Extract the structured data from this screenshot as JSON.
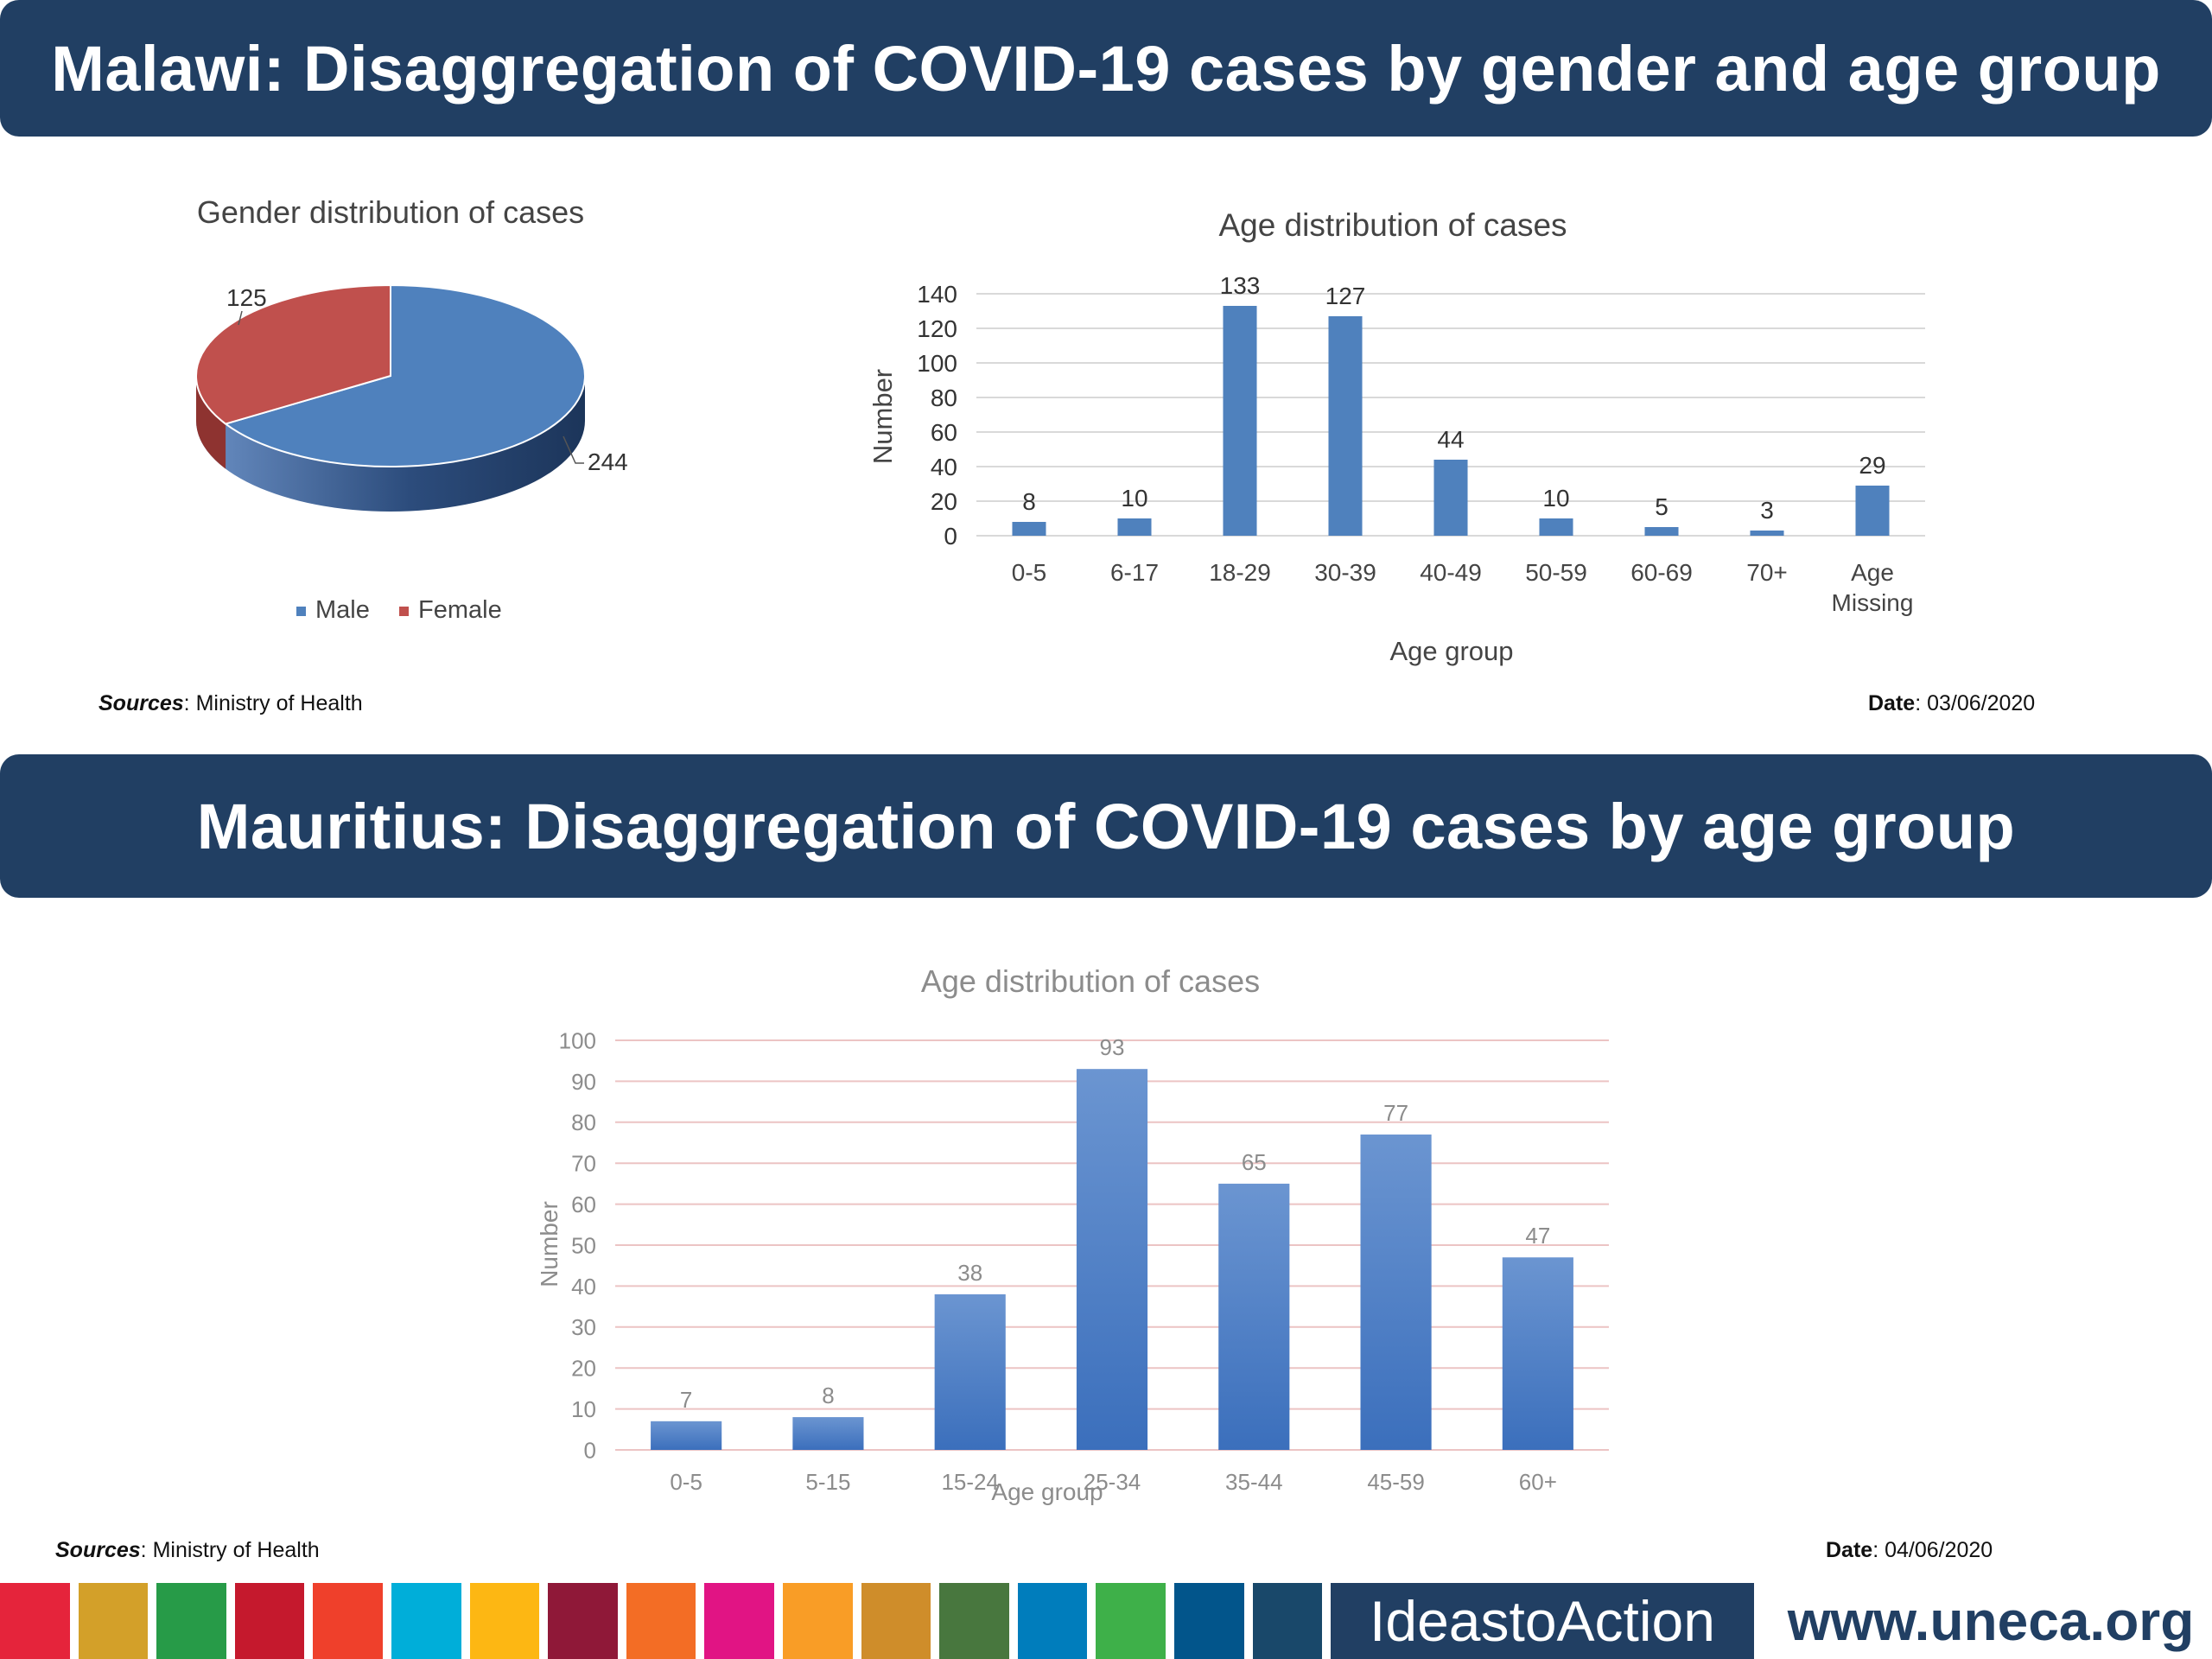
{
  "malawi": {
    "title": "Malawi: Disaggregation of COVID-19 cases by gender and age group",
    "sources_label": "Sources",
    "sources_value": ": Ministry of Health",
    "date_label": "Date",
    "date_value": ": 03/06/2020"
  },
  "mauritius": {
    "title": "Mauritius: Disaggregation of COVID-19 cases by  age group",
    "sources_label": "Sources",
    "sources_value": ": Ministry of Health",
    "date_label": "Date",
    "date_value": ": 04/06/2020"
  },
  "footer": {
    "ideas_label": "IdeastoAction",
    "website": "www.uneca.org",
    "sdg_colors": [
      "#e5243b",
      "#d3a029",
      "#279b48",
      "#c5192d",
      "#ef402b",
      "#00aed9",
      "#fdb713",
      "#8f1838",
      "#f36d25",
      "#e11484",
      "#f99d26",
      "#cf8d2a",
      "#48773e",
      "#007dbc",
      "#3eb049",
      "#02558b",
      "#19486a"
    ]
  },
  "chart_data": [
    {
      "type": "pie",
      "title": "Gender distribution of cases",
      "categories": [
        "Male",
        "Female"
      ],
      "values": [
        244,
        125
      ],
      "colors": [
        "#4f81bd",
        "#c0504d"
      ],
      "legend": "bottom"
    },
    {
      "type": "bar",
      "title": "Age distribution of cases",
      "xlabel": "Age group",
      "ylabel": "Number",
      "categories": [
        "0-5",
        "6-17",
        "18-29",
        "30-39",
        "40-49",
        "50-59",
        "60-69",
        "70+",
        "Age Missing"
      ],
      "values": [
        8,
        10,
        133,
        127,
        44,
        10,
        5,
        3,
        29
      ],
      "ylim": [
        0,
        140
      ],
      "yticks": [
        0,
        20,
        40,
        60,
        80,
        100,
        120,
        140
      ],
      "color": "#4f81bd",
      "grid": true
    },
    {
      "type": "bar",
      "title": "Age distribution of cases",
      "xlabel": "Age group",
      "ylabel": "Number",
      "categories": [
        "0-5",
        "5-15",
        "15-24",
        "25-34",
        "35-44",
        "45-59",
        "60+"
      ],
      "values": [
        7,
        8,
        38,
        93,
        65,
        77,
        47
      ],
      "ylim": [
        0,
        100
      ],
      "yticks": [
        0,
        10,
        20,
        30,
        40,
        50,
        60,
        70,
        80,
        90,
        100
      ],
      "color": "#4a7ec6",
      "grid": true
    }
  ]
}
